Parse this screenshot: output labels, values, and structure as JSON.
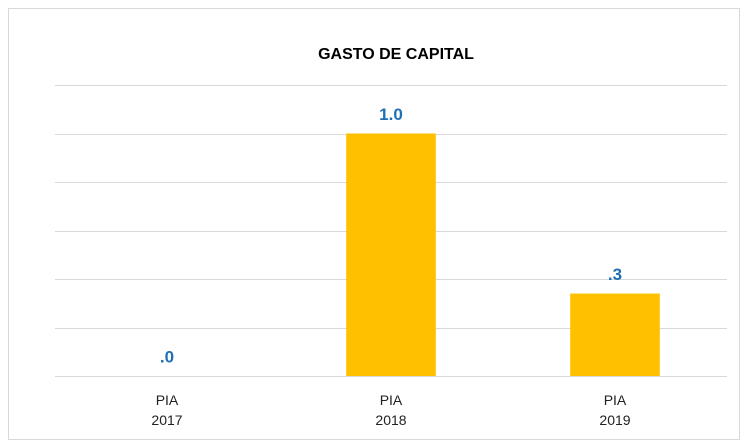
{
  "chart_data": {
    "type": "bar",
    "title": "GASTO DE CAPITAL",
    "categories": [
      "PIA 2017",
      "PIA 2018",
      "PIA 2019"
    ],
    "values": [
      0,
      1.0,
      0.34
    ],
    "value_labels": [
      ".0",
      "1.0",
      ".3"
    ],
    "color": "#ffc000",
    "label_color": "#1f6fb5",
    "ylim": [
      0,
      1.2
    ],
    "yticks": [
      0,
      0.2,
      0.4,
      0.6,
      0.8,
      1.0,
      1.2
    ],
    "grid": true
  }
}
